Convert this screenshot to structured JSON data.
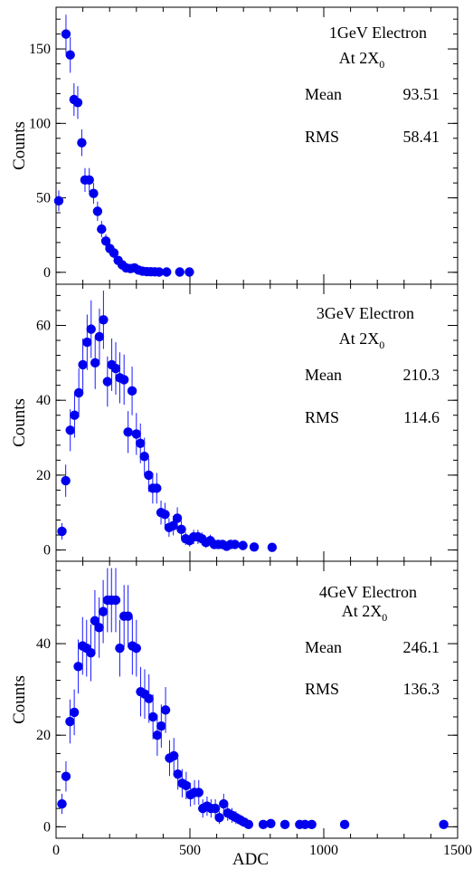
{
  "colors": {
    "marker": "#0000ee",
    "errorbar": "#1a1aff",
    "axis": "#000000"
  },
  "xlabel": "ADC",
  "chart_data": [
    {
      "type": "scatter",
      "title": "1GeV Electron",
      "subtitle_base": "At 2X",
      "subtitle_sub": "0",
      "ylabel": "Counts",
      "xlim": [
        0,
        1500
      ],
      "ylim": [
        -8,
        178
      ],
      "yticks": [
        0,
        50,
        100,
        150
      ],
      "mean_label": "Mean",
      "mean_value": "93.51",
      "rms_label": "RMS",
      "rms_value": "58.41",
      "x": [
        10,
        37,
        53,
        67,
        81,
        96,
        108,
        124,
        140,
        155,
        170,
        186,
        201,
        216,
        232,
        247,
        262,
        278,
        293,
        308,
        323,
        339,
        354,
        369,
        385,
        413,
        462,
        498
      ],
      "y": [
        48,
        160,
        146,
        116,
        114,
        87,
        62,
        62,
        53,
        41,
        29,
        21,
        16,
        13,
        8,
        5,
        3,
        2.5,
        3,
        1.5,
        0.8,
        0.5,
        0.4,
        0.3,
        0.2,
        0.2,
        0.2,
        0.2
      ],
      "err": [
        7,
        13,
        12,
        11,
        11,
        9,
        8,
        8,
        7,
        6.5,
        5.5,
        4.6,
        4,
        3.6,
        2.8,
        2.2,
        1.7,
        1.6,
        1.7,
        1.2,
        0.9,
        0.7,
        0.6,
        0.5,
        0.4,
        0.4,
        0.4,
        0.4
      ]
    },
    {
      "type": "scatter",
      "title": "3GeV Electron",
      "subtitle_base": "At 2X",
      "subtitle_sub": "0",
      "ylabel": "Counts",
      "xlim": [
        0,
        1500
      ],
      "ylim": [
        -3,
        71
      ],
      "yticks": [
        0,
        20,
        40,
        60
      ],
      "mean_label": "Mean",
      "mean_value": "210.3",
      "rms_label": "RMS",
      "rms_value": "114.6",
      "x": [
        22,
        36,
        53,
        69,
        85,
        100,
        116,
        131,
        146,
        162,
        177,
        192,
        208,
        223,
        238,
        254,
        269,
        284,
        300,
        315,
        330,
        346,
        361,
        376,
        392,
        407,
        422,
        438,
        453,
        468,
        484,
        499,
        514,
        530,
        545,
        560,
        576,
        591,
        606,
        622,
        637,
        652,
        668,
        698,
        740,
        807
      ],
      "y": [
        5,
        18.5,
        32,
        36,
        42,
        49.5,
        55.5,
        59,
        50,
        57,
        61.5,
        45,
        49.5,
        48.5,
        46,
        45.5,
        31.5,
        42.5,
        31,
        28.5,
        25,
        20,
        16.5,
        16.5,
        10,
        9.5,
        6,
        6.5,
        8.5,
        5.5,
        3,
        2.5,
        3.5,
        3.5,
        3,
        2,
        2.5,
        1.5,
        1.5,
        1.5,
        1,
        1.5,
        1.5,
        1.2,
        0.8,
        0.7
      ],
      "err": [
        2.2,
        4.3,
        5.6,
        6,
        6.5,
        7,
        7.4,
        7.7,
        7,
        7.5,
        7.8,
        6.7,
        7,
        7,
        6.8,
        6.7,
        5.6,
        6.5,
        5.6,
        5.3,
        5,
        4.5,
        4.1,
        4.1,
        3.2,
        3.1,
        2.5,
        2.6,
        2.9,
        2.3,
        1.7,
        1.6,
        1.9,
        1.9,
        1.7,
        1.4,
        1.6,
        1.2,
        1.2,
        1.2,
        1,
        1.2,
        1.2,
        1.1,
        0.9,
        0.8
      ]
    },
    {
      "type": "scatter",
      "title": "4GeV Electron",
      "subtitle_base": "At 2X",
      "subtitle_sub": "0",
      "ylabel": "Counts",
      "xlabel": "ADC",
      "xlim": [
        0,
        1500
      ],
      "ylim": [
        -2.5,
        58
      ],
      "yticks": [
        0,
        20,
        40
      ],
      "xticks": [
        0,
        500,
        1000,
        1500
      ],
      "mean_label": "Mean",
      "mean_value": "246.1",
      "rms_label": "RMS",
      "rms_value": "136.3",
      "x": [
        22,
        37,
        52,
        68,
        83,
        99,
        114,
        130,
        145,
        161,
        176,
        192,
        207,
        223,
        238,
        254,
        269,
        285,
        300,
        316,
        331,
        347,
        362,
        378,
        393,
        409,
        424,
        440,
        455,
        471,
        486,
        502,
        517,
        533,
        548,
        564,
        579,
        595,
        610,
        626,
        641,
        657,
        672,
        688,
        703,
        719,
        774,
        802,
        855,
        910,
        930,
        955,
        1078,
        1448
      ],
      "y": [
        5,
        11,
        23,
        25,
        35,
        39.5,
        39,
        38,
        45,
        43.5,
        47,
        49.5,
        49.5,
        49.5,
        39,
        46,
        46,
        39.5,
        39,
        29.5,
        29,
        28,
        24,
        20,
        22,
        25.5,
        15,
        15.5,
        11.5,
        9.5,
        9,
        7,
        7.5,
        7.5,
        4,
        4.5,
        4,
        4,
        2,
        5,
        3,
        2.5,
        2,
        1.5,
        1,
        0.5,
        0.5,
        0.7,
        0.5,
        0.5,
        0.5,
        0.5,
        0.5,
        0.5
      ],
      "err": [
        2.2,
        3.3,
        4.8,
        5,
        5.9,
        6.3,
        6.2,
        6.2,
        6.7,
        6.6,
        6.9,
        7,
        7,
        7,
        6.2,
        6.8,
        6.8,
        6.3,
        6.2,
        5.4,
        5.4,
        5.3,
        4.9,
        4.5,
        4.7,
        5,
        3.9,
        3.9,
        3.4,
        3.1,
        3,
        2.6,
        2.7,
        2.7,
        2,
        2.1,
        2,
        2,
        1.4,
        2.2,
        1.7,
        1.6,
        1.4,
        1.2,
        1,
        0.7,
        0.7,
        0.8,
        0.7,
        0.7,
        0.7,
        0.7,
        0.7,
        0.7
      ]
    }
  ]
}
